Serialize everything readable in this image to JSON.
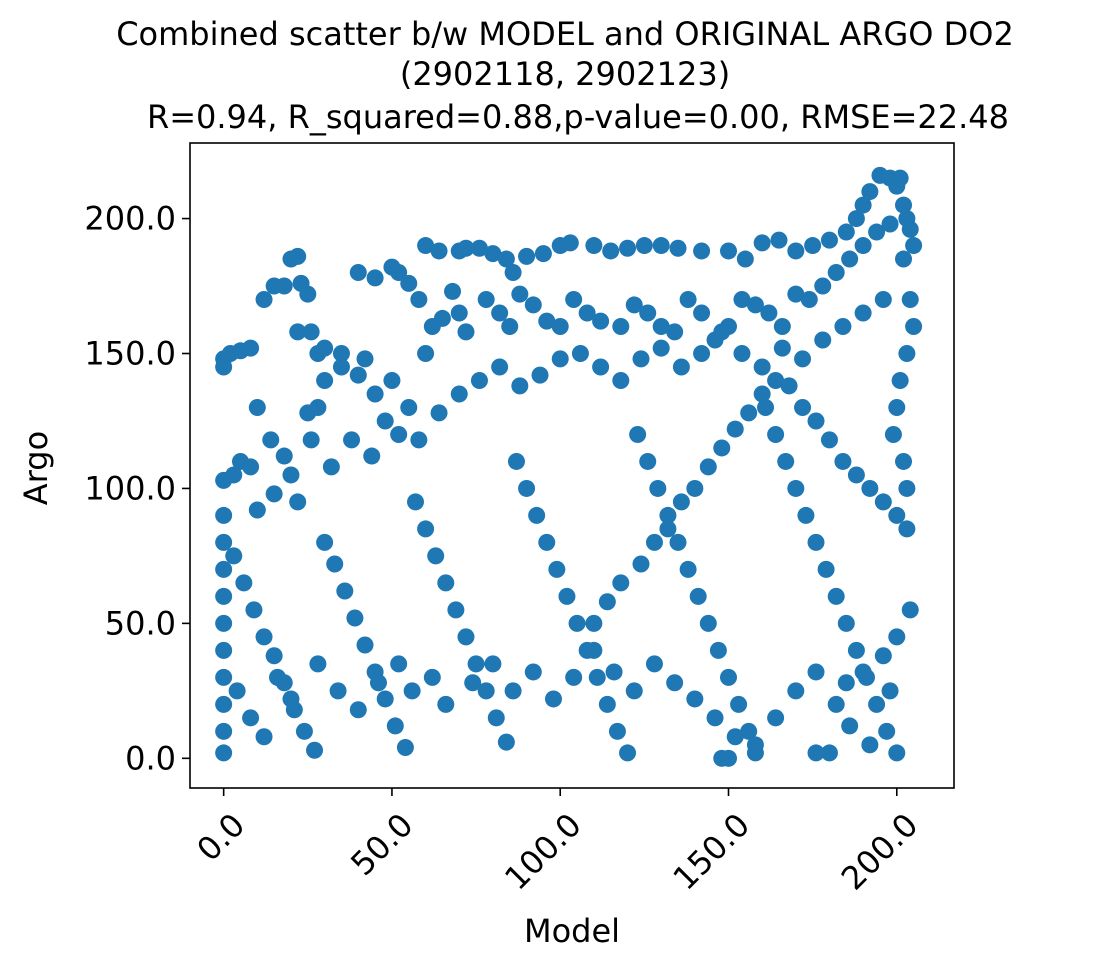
{
  "chart_data": {
    "type": "scatter",
    "title": "Combined scatter b/w MODEL and ORIGINAL ARGO DO2",
    "subtitle": "(2902118, 2902123)",
    "stats_line": "R=0.94, R_squared=0.88,p-value=0.00, RMSE=22.48",
    "xlabel": "Model",
    "ylabel": "Argo",
    "xlim": [
      -10,
      217
    ],
    "ylim": [
      -11,
      228
    ],
    "xticks": [
      0,
      50,
      100,
      150,
      200
    ],
    "xtick_labels": [
      "0.0",
      "50.0",
      "100.0",
      "150.0",
      "200.0"
    ],
    "yticks": [
      0,
      50,
      100,
      150,
      200
    ],
    "ytick_labels": [
      "0.0",
      "50.0",
      "100.0",
      "150.0",
      "200.0"
    ],
    "grid": false,
    "marker_color": "#1f77b4",
    "points": [
      [
        0,
        148
      ],
      [
        0,
        145
      ],
      [
        2,
        150
      ],
      [
        5,
        151
      ],
      [
        8,
        152
      ],
      [
        12,
        170
      ],
      [
        15,
        175
      ],
      [
        18,
        175
      ],
      [
        20,
        185
      ],
      [
        22,
        186
      ],
      [
        23,
        176
      ],
      [
        25,
        172
      ],
      [
        22,
        158
      ],
      [
        26,
        158
      ],
      [
        28,
        150
      ],
      [
        30,
        152
      ],
      [
        35,
        150
      ],
      [
        40,
        180
      ],
      [
        45,
        178
      ],
      [
        50,
        182
      ],
      [
        52,
        180
      ],
      [
        55,
        176
      ],
      [
        58,
        170
      ],
      [
        60,
        190
      ],
      [
        64,
        188
      ],
      [
        68,
        173
      ],
      [
        70,
        188
      ],
      [
        72,
        189
      ],
      [
        76,
        189
      ],
      [
        80,
        187
      ],
      [
        84,
        185
      ],
      [
        86,
        180
      ],
      [
        90,
        186
      ],
      [
        95,
        187
      ],
      [
        100,
        190
      ],
      [
        103,
        191
      ],
      [
        110,
        190
      ],
      [
        115,
        188
      ],
      [
        120,
        189
      ],
      [
        125,
        190
      ],
      [
        130,
        190
      ],
      [
        135,
        189
      ],
      [
        142,
        188
      ],
      [
        150,
        188
      ],
      [
        155,
        185
      ],
      [
        160,
        191
      ],
      [
        165,
        192
      ],
      [
        170,
        188
      ],
      [
        175,
        190
      ],
      [
        180,
        192
      ],
      [
        185,
        195
      ],
      [
        188,
        200
      ],
      [
        190,
        205
      ],
      [
        192,
        210
      ],
      [
        195,
        216
      ],
      [
        198,
        215
      ],
      [
        200,
        212
      ],
      [
        202,
        205
      ],
      [
        204,
        196
      ],
      [
        205,
        190
      ],
      [
        203,
        200
      ],
      [
        201,
        215
      ],
      [
        0,
        103
      ],
      [
        0,
        90
      ],
      [
        3,
        105
      ],
      [
        5,
        110
      ],
      [
        8,
        108
      ],
      [
        10,
        92
      ],
      [
        15,
        98
      ],
      [
        20,
        105
      ],
      [
        22,
        95
      ],
      [
        25,
        128
      ],
      [
        28,
        130
      ],
      [
        30,
        140
      ],
      [
        35,
        145
      ],
      [
        40,
        142
      ],
      [
        42,
        148
      ],
      [
        45,
        135
      ],
      [
        48,
        125
      ],
      [
        50,
        140
      ],
      [
        55,
        130
      ],
      [
        60,
        150
      ],
      [
        62,
        160
      ],
      [
        65,
        163
      ],
      [
        70,
        165
      ],
      [
        72,
        158
      ],
      [
        78,
        170
      ],
      [
        82,
        165
      ],
      [
        85,
        160
      ],
      [
        88,
        172
      ],
      [
        92,
        168
      ],
      [
        96,
        162
      ],
      [
        100,
        160
      ],
      [
        104,
        170
      ],
      [
        108,
        165
      ],
      [
        112,
        162
      ],
      [
        118,
        160
      ],
      [
        122,
        168
      ],
      [
        126,
        165
      ],
      [
        130,
        160
      ],
      [
        134,
        158
      ],
      [
        138,
        170
      ],
      [
        142,
        165
      ],
      [
        146,
        155
      ],
      [
        150,
        160
      ],
      [
        154,
        170
      ],
      [
        158,
        168
      ],
      [
        162,
        165
      ],
      [
        166,
        160
      ],
      [
        170,
        172
      ],
      [
        174,
        170
      ],
      [
        178,
        175
      ],
      [
        182,
        180
      ],
      [
        186,
        185
      ],
      [
        190,
        190
      ],
      [
        194,
        195
      ],
      [
        198,
        198
      ],
      [
        202,
        185
      ],
      [
        204,
        170
      ],
      [
        205,
        160
      ],
      [
        203,
        150
      ],
      [
        201,
        140
      ],
      [
        200,
        130
      ],
      [
        199,
        120
      ],
      [
        202,
        110
      ],
      [
        203,
        100
      ],
      [
        0,
        80
      ],
      [
        0,
        70
      ],
      [
        0,
        60
      ],
      [
        0,
        50
      ],
      [
        0,
        40
      ],
      [
        0,
        30
      ],
      [
        0,
        20
      ],
      [
        0,
        10
      ],
      [
        0,
        2
      ],
      [
        3,
        75
      ],
      [
        6,
        65
      ],
      [
        9,
        55
      ],
      [
        12,
        45
      ],
      [
        15,
        38
      ],
      [
        18,
        28
      ],
      [
        21,
        18
      ],
      [
        24,
        10
      ],
      [
        27,
        3
      ],
      [
        30,
        80
      ],
      [
        33,
        72
      ],
      [
        36,
        62
      ],
      [
        39,
        52
      ],
      [
        42,
        42
      ],
      [
        45,
        32
      ],
      [
        48,
        22
      ],
      [
        51,
        12
      ],
      [
        54,
        4
      ],
      [
        57,
        95
      ],
      [
        60,
        85
      ],
      [
        63,
        75
      ],
      [
        66,
        65
      ],
      [
        69,
        55
      ],
      [
        72,
        45
      ],
      [
        75,
        35
      ],
      [
        78,
        25
      ],
      [
        81,
        15
      ],
      [
        84,
        6
      ],
      [
        87,
        110
      ],
      [
        90,
        100
      ],
      [
        93,
        90
      ],
      [
        96,
        80
      ],
      [
        99,
        70
      ],
      [
        102,
        60
      ],
      [
        105,
        50
      ],
      [
        108,
        40
      ],
      [
        111,
        30
      ],
      [
        114,
        20
      ],
      [
        117,
        10
      ],
      [
        120,
        2
      ],
      [
        123,
        120
      ],
      [
        126,
        110
      ],
      [
        129,
        100
      ],
      [
        132,
        90
      ],
      [
        135,
        80
      ],
      [
        138,
        70
      ],
      [
        141,
        60
      ],
      [
        144,
        50
      ],
      [
        147,
        40
      ],
      [
        150,
        30
      ],
      [
        153,
        20
      ],
      [
        156,
        10
      ],
      [
        158,
        2
      ],
      [
        161,
        130
      ],
      [
        164,
        120
      ],
      [
        167,
        110
      ],
      [
        170,
        100
      ],
      [
        173,
        90
      ],
      [
        176,
        80
      ],
      [
        179,
        70
      ],
      [
        182,
        60
      ],
      [
        185,
        50
      ],
      [
        188,
        40
      ],
      [
        191,
        30
      ],
      [
        194,
        20
      ],
      [
        197,
        10
      ],
      [
        200,
        2
      ],
      [
        10,
        130
      ],
      [
        14,
        118
      ],
      [
        18,
        112
      ],
      [
        26,
        118
      ],
      [
        32,
        108
      ],
      [
        38,
        118
      ],
      [
        44,
        112
      ],
      [
        52,
        120
      ],
      [
        58,
        118
      ],
      [
        64,
        128
      ],
      [
        70,
        135
      ],
      [
        76,
        140
      ],
      [
        82,
        145
      ],
      [
        88,
        138
      ],
      [
        94,
        142
      ],
      [
        100,
        148
      ],
      [
        106,
        150
      ],
      [
        112,
        145
      ],
      [
        118,
        140
      ],
      [
        124,
        148
      ],
      [
        130,
        152
      ],
      [
        136,
        145
      ],
      [
        142,
        150
      ],
      [
        148,
        158
      ],
      [
        154,
        150
      ],
      [
        160,
        145
      ],
      [
        166,
        152
      ],
      [
        172,
        148
      ],
      [
        178,
        155
      ],
      [
        184,
        160
      ],
      [
        190,
        165
      ],
      [
        196,
        170
      ],
      [
        4,
        25
      ],
      [
        8,
        15
      ],
      [
        12,
        8
      ],
      [
        16,
        30
      ],
      [
        20,
        22
      ],
      [
        28,
        35
      ],
      [
        34,
        25
      ],
      [
        40,
        18
      ],
      [
        46,
        28
      ],
      [
        52,
        35
      ],
      [
        56,
        25
      ],
      [
        62,
        30
      ],
      [
        66,
        20
      ],
      [
        74,
        28
      ],
      [
        80,
        35
      ],
      [
        86,
        25
      ],
      [
        92,
        32
      ],
      [
        98,
        22
      ],
      [
        104,
        30
      ],
      [
        110,
        40
      ],
      [
        116,
        32
      ],
      [
        122,
        25
      ],
      [
        128,
        35
      ],
      [
        134,
        28
      ],
      [
        140,
        22
      ],
      [
        146,
        15
      ],
      [
        152,
        8
      ],
      [
        158,
        5
      ],
      [
        164,
        15
      ],
      [
        170,
        25
      ],
      [
        176,
        32
      ],
      [
        182,
        20
      ],
      [
        186,
        12
      ],
      [
        192,
        5
      ],
      [
        198,
        25
      ],
      [
        204,
        55
      ],
      [
        200,
        45
      ],
      [
        196,
        38
      ],
      [
        190,
        32
      ],
      [
        185,
        28
      ],
      [
        180,
        2
      ],
      [
        176,
        2
      ],
      [
        150,
        0
      ],
      [
        148,
        0
      ],
      [
        110,
        50
      ],
      [
        114,
        58
      ],
      [
        118,
        65
      ],
      [
        124,
        72
      ],
      [
        128,
        80
      ],
      [
        132,
        85
      ],
      [
        136,
        95
      ],
      [
        140,
        100
      ],
      [
        144,
        108
      ],
      [
        148,
        115
      ],
      [
        152,
        122
      ],
      [
        156,
        128
      ],
      [
        160,
        135
      ],
      [
        164,
        140
      ],
      [
        168,
        138
      ],
      [
        172,
        130
      ],
      [
        176,
        125
      ],
      [
        180,
        118
      ],
      [
        184,
        110
      ],
      [
        188,
        105
      ],
      [
        192,
        100
      ],
      [
        196,
        95
      ],
      [
        200,
        90
      ],
      [
        203,
        85
      ]
    ]
  }
}
